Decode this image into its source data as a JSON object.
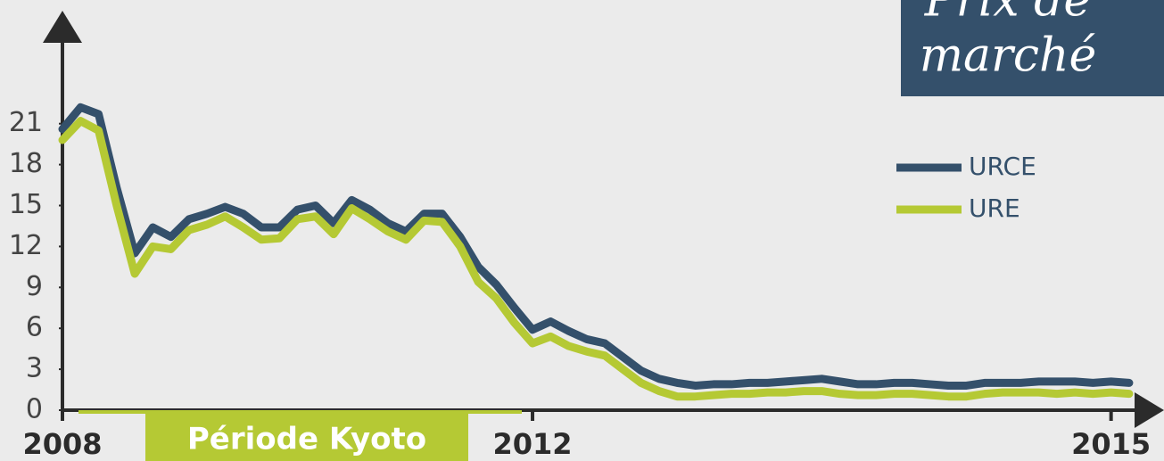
{
  "chart_data": {
    "type": "line",
    "title_lines": [
      "Prix de",
      "marché"
    ],
    "annotation": "Période Kyoto",
    "categories": [
      "2008",
      null,
      null,
      null,
      null,
      null,
      null,
      null,
      null,
      null,
      null,
      null,
      null,
      null,
      null,
      null,
      null,
      null,
      null,
      null,
      null,
      null,
      null,
      null,
      null,
      null,
      "2012",
      null,
      null,
      null,
      null,
      null,
      null,
      null,
      null,
      null,
      null,
      null,
      null,
      null,
      null,
      null,
      null,
      null,
      null,
      null,
      null,
      null,
      null,
      null,
      null,
      null,
      null,
      null,
      null,
      null,
      null,
      null,
      "2015",
      null
    ],
    "series": [
      {
        "name": "URCE",
        "color": "#34506b",
        "values": [
          20.6,
          22.2,
          21.7,
          16.3,
          11.5,
          13.4,
          12.7,
          14,
          14.4,
          14.9,
          14.4,
          13.4,
          13.4,
          14.7,
          15,
          13.7,
          15.4,
          14.7,
          13.7,
          13.1,
          14.4,
          14.4,
          12.7,
          10.5,
          9.2,
          7.5,
          5.9,
          6.5,
          5.8,
          5.2,
          4.9,
          3.9,
          2.9,
          2.3,
          2,
          1.8,
          1.9,
          1.9,
          2,
          2,
          2.1,
          2.2,
          2.3,
          2.1,
          1.9,
          1.9,
          2,
          2,
          1.9,
          1.8,
          1.8,
          2,
          2,
          2,
          2.1,
          2.1,
          2.1,
          2,
          2.1,
          2
        ]
      },
      {
        "name": "URE",
        "color": "#b5c934",
        "values": [
          19.8,
          21.2,
          20.5,
          15,
          10,
          12,
          11.8,
          13.2,
          13.6,
          14.2,
          13.4,
          12.5,
          12.6,
          14,
          14.2,
          12.9,
          14.8,
          14,
          13.1,
          12.5,
          13.9,
          13.8,
          12,
          9.4,
          8.2,
          6.4,
          4.9,
          5.4,
          4.7,
          4.3,
          4,
          3,
          2,
          1.4,
          1,
          1,
          1.1,
          1.2,
          1.2,
          1.3,
          1.3,
          1.4,
          1.4,
          1.2,
          1.1,
          1.1,
          1.2,
          1.2,
          1.1,
          1,
          1,
          1.2,
          1.3,
          1.3,
          1.3,
          1.2,
          1.3,
          1.2,
          1.3,
          1.2
        ]
      }
    ],
    "ylim": [
      0,
      27
    ],
    "yticks": [
      0,
      3,
      6,
      9,
      12,
      15,
      18,
      21
    ],
    "legend": "top-right"
  }
}
